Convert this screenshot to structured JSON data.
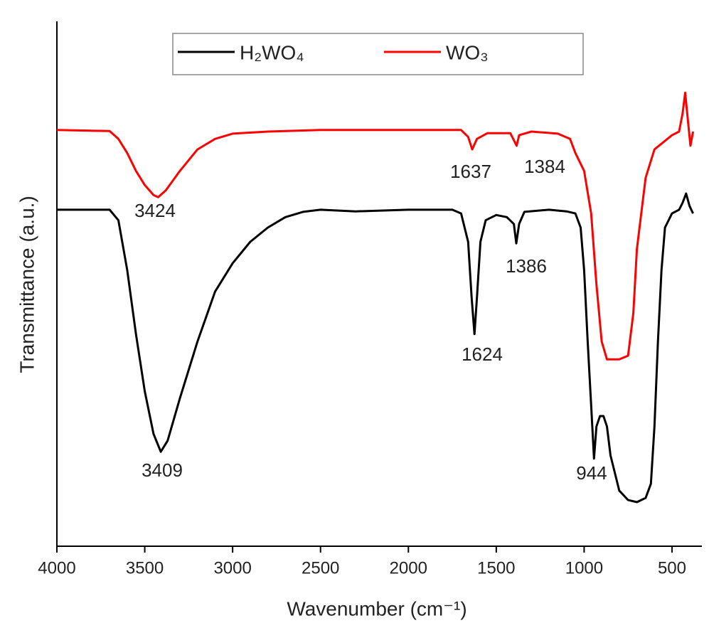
{
  "chart_data": {
    "type": "line",
    "xlabel": "Wavenumber (cm⁻¹)",
    "ylabel": "Transmittance (a.u.)",
    "xlim": [
      4000,
      330
    ],
    "xticks": [
      4000,
      3500,
      3000,
      2500,
      2000,
      1500,
      1000,
      500
    ],
    "ylim": [
      0,
      100
    ],
    "series": [
      {
        "name": "H₂WO₄",
        "color": "#000000",
        "x": [
          4000,
          3700,
          3650,
          3600,
          3550,
          3500,
          3450,
          3409,
          3370,
          3300,
          3200,
          3100,
          3000,
          2900,
          2800,
          2700,
          2600,
          2500,
          2300,
          2000,
          1750,
          1700,
          1660,
          1640,
          1624,
          1610,
          1590,
          1560,
          1500,
          1440,
          1400,
          1386,
          1370,
          1340,
          1200,
          1100,
          1050,
          1020,
          1000,
          980,
          960,
          944,
          930,
          910,
          890,
          870,
          850,
          800,
          750,
          700,
          650,
          620,
          600,
          580,
          560,
          540,
          500,
          460,
          440,
          420,
          400,
          380
        ],
        "values": [
          64.1,
          64.1,
          62.1,
          52.6,
          40.4,
          29.5,
          21.4,
          18.0,
          20.1,
          28.2,
          39.0,
          48.5,
          53.9,
          58.0,
          60.7,
          62.7,
          63.7,
          64.1,
          63.8,
          64.1,
          64.1,
          63.4,
          58.0,
          47.4,
          40.4,
          47.4,
          58.0,
          62.1,
          63.1,
          62.7,
          61.4,
          57.7,
          61.4,
          63.7,
          64.1,
          63.8,
          63.4,
          60.7,
          52.6,
          39.0,
          26.8,
          16.7,
          22.8,
          24.8,
          24.8,
          22.8,
          17.3,
          10.6,
          8.8,
          8.4,
          9.2,
          11.9,
          22.8,
          39.0,
          52.6,
          60.7,
          63.4,
          64.1,
          65.4,
          67.2,
          64.8,
          63.4
        ]
      },
      {
        "name": "WO₃",
        "color": "#ff0000",
        "x": [
          4000,
          3700,
          3650,
          3600,
          3550,
          3500,
          3450,
          3424,
          3380,
          3300,
          3200,
          3100,
          3000,
          2800,
          2500,
          2000,
          1700,
          1660,
          1637,
          1610,
          1550,
          1420,
          1384,
          1370,
          1300,
          1150,
          1080,
          1050,
          1000,
          960,
          930,
          900,
          870,
          800,
          750,
          720,
          700,
          650,
          600,
          500,
          460,
          440,
          425,
          410,
          395,
          380
        ],
        "values": [
          79.3,
          79.1,
          77.6,
          74.9,
          71.5,
          68.8,
          66.9,
          66.5,
          67.8,
          71.5,
          75.6,
          77.6,
          78.6,
          79.0,
          79.3,
          79.3,
          79.3,
          78.0,
          75.6,
          77.6,
          78.7,
          78.7,
          76.3,
          78.3,
          79.0,
          78.6,
          77.6,
          74.9,
          71.5,
          63.4,
          49.9,
          39.0,
          35.6,
          35.6,
          36.3,
          44.4,
          56.6,
          70.2,
          75.6,
          78.3,
          79.0,
          82.4,
          86.4,
          81.3,
          76.3,
          79.0
        ]
      }
    ],
    "annotations": [
      "3424",
      "1637",
      "1384",
      "1386",
      "1624",
      "3409",
      "944"
    ]
  }
}
